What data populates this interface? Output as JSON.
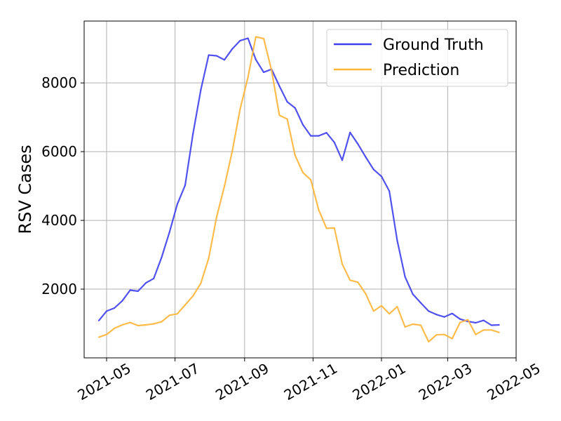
{
  "chart_data": {
    "type": "line",
    "title": "",
    "xlabel": "",
    "ylabel": "RSV Cases",
    "x_ticks": [
      "2021-05",
      "2021-07",
      "2021-09",
      "2021-11",
      "2022-01",
      "2022-03",
      "2022-05"
    ],
    "y_ticks": [
      "2000",
      "4000",
      "6000",
      "8000"
    ],
    "xlim": [
      "2021-04-11",
      "2022-05-01"
    ],
    "ylim": [
      0,
      9800
    ],
    "grid": true,
    "legend_position": "top-right",
    "series": [
      {
        "name": "Ground Truth",
        "color": "#3f3ff0",
        "points": [
          [
            "2021-04-24",
            1080
          ],
          [
            "2021-05-01",
            1360
          ],
          [
            "2021-05-08",
            1450
          ],
          [
            "2021-05-15",
            1660
          ],
          [
            "2021-05-22",
            1970
          ],
          [
            "2021-05-29",
            1940
          ],
          [
            "2021-06-05",
            2180
          ],
          [
            "2021-06-12",
            2310
          ],
          [
            "2021-06-19",
            2920
          ],
          [
            "2021-06-26",
            3650
          ],
          [
            "2021-07-03",
            4470
          ],
          [
            "2021-07-10",
            5020
          ],
          [
            "2021-07-17",
            6520
          ],
          [
            "2021-07-24",
            7800
          ],
          [
            "2021-07-31",
            8810
          ],
          [
            "2021-08-07",
            8790
          ],
          [
            "2021-08-14",
            8670
          ],
          [
            "2021-08-21",
            8990
          ],
          [
            "2021-08-28",
            9230
          ],
          [
            "2021-09-04",
            9300
          ],
          [
            "2021-09-11",
            8680
          ],
          [
            "2021-09-18",
            8310
          ],
          [
            "2021-09-25",
            8400
          ],
          [
            "2021-10-02",
            7910
          ],
          [
            "2021-10-09",
            7450
          ],
          [
            "2021-10-16",
            7270
          ],
          [
            "2021-10-23",
            6780
          ],
          [
            "2021-10-30",
            6460
          ],
          [
            "2021-11-06",
            6460
          ],
          [
            "2021-11-13",
            6550
          ],
          [
            "2021-11-20",
            6270
          ],
          [
            "2021-11-27",
            5750
          ],
          [
            "2021-12-04",
            6560
          ],
          [
            "2021-12-11",
            6220
          ],
          [
            "2021-12-18",
            5840
          ],
          [
            "2021-12-25",
            5480
          ],
          [
            "2022-01-01",
            5280
          ],
          [
            "2022-01-08",
            4850
          ],
          [
            "2022-01-15",
            3420
          ],
          [
            "2022-01-22",
            2360
          ],
          [
            "2022-01-29",
            1850
          ],
          [
            "2022-02-05",
            1600
          ],
          [
            "2022-02-12",
            1360
          ],
          [
            "2022-02-19",
            1260
          ],
          [
            "2022-02-26",
            1190
          ],
          [
            "2022-03-05",
            1290
          ],
          [
            "2022-03-12",
            1130
          ],
          [
            "2022-03-19",
            1060
          ],
          [
            "2022-03-26",
            1020
          ],
          [
            "2022-04-02",
            1090
          ],
          [
            "2022-04-09",
            950
          ],
          [
            "2022-04-16",
            960
          ]
        ]
      },
      {
        "name": "Prediction",
        "color": "#fdb538",
        "points": [
          [
            "2021-04-24",
            600
          ],
          [
            "2021-05-01",
            680
          ],
          [
            "2021-05-08",
            860
          ],
          [
            "2021-05-15",
            960
          ],
          [
            "2021-05-22",
            1030
          ],
          [
            "2021-05-29",
            940
          ],
          [
            "2021-06-05",
            960
          ],
          [
            "2021-06-12",
            990
          ],
          [
            "2021-06-19",
            1050
          ],
          [
            "2021-06-26",
            1240
          ],
          [
            "2021-07-03",
            1280
          ],
          [
            "2021-07-10",
            1540
          ],
          [
            "2021-07-17",
            1800
          ],
          [
            "2021-07-24",
            2170
          ],
          [
            "2021-07-31",
            2900
          ],
          [
            "2021-08-07",
            4090
          ],
          [
            "2021-08-14",
            4990
          ],
          [
            "2021-08-21",
            6010
          ],
          [
            "2021-08-28",
            7240
          ],
          [
            "2021-09-04",
            8160
          ],
          [
            "2021-09-11",
            9340
          ],
          [
            "2021-09-18",
            9290
          ],
          [
            "2021-09-25",
            8370
          ],
          [
            "2021-10-02",
            7060
          ],
          [
            "2021-10-09",
            6950
          ],
          [
            "2021-10-16",
            5890
          ],
          [
            "2021-10-23",
            5390
          ],
          [
            "2021-10-30",
            5180
          ],
          [
            "2021-11-06",
            4310
          ],
          [
            "2021-11-13",
            3770
          ],
          [
            "2021-11-20",
            3780
          ],
          [
            "2021-11-27",
            2730
          ],
          [
            "2021-12-04",
            2260
          ],
          [
            "2021-12-11",
            2200
          ],
          [
            "2021-12-18",
            1860
          ],
          [
            "2021-12-25",
            1360
          ],
          [
            "2022-01-01",
            1520
          ],
          [
            "2022-01-08",
            1280
          ],
          [
            "2022-01-15",
            1490
          ],
          [
            "2022-01-22",
            900
          ],
          [
            "2022-01-29",
            980
          ],
          [
            "2022-02-05",
            950
          ],
          [
            "2022-02-12",
            470
          ],
          [
            "2022-02-19",
            670
          ],
          [
            "2022-02-26",
            680
          ],
          [
            "2022-03-05",
            560
          ],
          [
            "2022-03-12",
            1030
          ],
          [
            "2022-03-19",
            1110
          ],
          [
            "2022-03-26",
            680
          ],
          [
            "2022-04-02",
            810
          ],
          [
            "2022-04-09",
            810
          ],
          [
            "2022-04-16",
            740
          ]
        ]
      }
    ]
  }
}
